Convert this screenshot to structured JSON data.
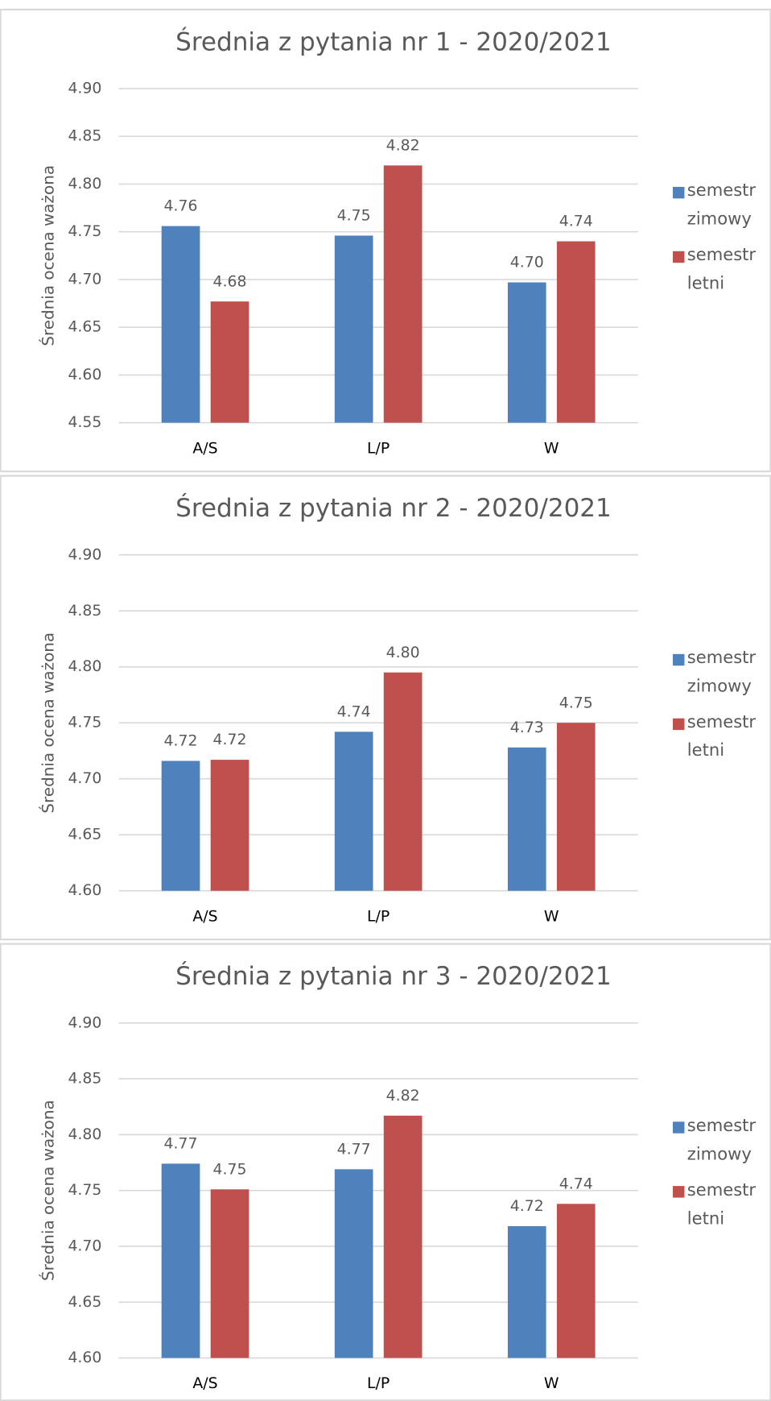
{
  "chart_data": [
    {
      "type": "bar",
      "title": "Średnia z pytania nr 1 - 2020/2021",
      "y_label": "Średnia ocena ważona",
      "categories": [
        "A/S",
        "L/P",
        "W"
      ],
      "series": [
        {
          "name": "semestr zimowy",
          "color": "#4f81bd",
          "values": [
            4.756,
            4.746,
            4.697
          ],
          "value_labels": [
            "4.76",
            "4.75",
            "4.70"
          ]
        },
        {
          "name": "semestr letni",
          "color": "#c0504d",
          "values": [
            4.677,
            4.8195,
            4.74
          ],
          "value_labels": [
            "4.68",
            "4.82",
            "4.74"
          ]
        }
      ],
      "ylim": [
        4.55,
        4.9
      ],
      "yticks": [
        {
          "value": 4.55,
          "label": "4.55"
        },
        {
          "value": 4.6,
          "label": "4.60"
        },
        {
          "value": 4.65,
          "label": "4.65"
        },
        {
          "value": 4.7,
          "label": "4.70"
        },
        {
          "value": 4.75,
          "label": "4.75"
        },
        {
          "value": 4.8,
          "label": "4.80"
        },
        {
          "value": 4.85,
          "label": "4.85"
        },
        {
          "value": 4.9,
          "label": "4.90"
        }
      ],
      "grid": true,
      "legend": "right"
    },
    {
      "type": "bar",
      "title": "Średnia z pytania nr 2 - 2020/2021",
      "y_label": "Średnia ocena ważona",
      "categories": [
        "A/S",
        "L/P",
        "W"
      ],
      "series": [
        {
          "name": "semestr zimowy",
          "color": "#4f81bd",
          "values": [
            4.716,
            4.742,
            4.728
          ],
          "value_labels": [
            "4.72",
            "4.74",
            "4.73"
          ]
        },
        {
          "name": "semestr letni",
          "color": "#c0504d",
          "values": [
            4.717,
            4.795,
            4.75
          ],
          "value_labels": [
            "4.72",
            "4.80",
            "4.75"
          ]
        }
      ],
      "ylim": [
        4.6,
        4.9
      ],
      "yticks": [
        {
          "value": 4.6,
          "label": "4.60"
        },
        {
          "value": 4.65,
          "label": "4.65"
        },
        {
          "value": 4.7,
          "label": "4.70"
        },
        {
          "value": 4.75,
          "label": "4.75"
        },
        {
          "value": 4.8,
          "label": "4.80"
        },
        {
          "value": 4.85,
          "label": "4.85"
        },
        {
          "value": 4.9,
          "label": "4.90"
        }
      ],
      "grid": true,
      "legend": "right"
    },
    {
      "type": "bar",
      "title": "Średnia z pytania nr 3 - 2020/2021",
      "y_label": "Średnia ocena ważona",
      "categories": [
        "A/S",
        "L/P",
        "W"
      ],
      "series": [
        {
          "name": "semestr zimowy",
          "color": "#4f81bd",
          "values": [
            4.774,
            4.769,
            4.718
          ],
          "value_labels": [
            "4.77",
            "4.77",
            "4.72"
          ]
        },
        {
          "name": "semestr letni",
          "color": "#c0504d",
          "values": [
            4.751,
            4.817,
            4.738
          ],
          "value_labels": [
            "4.75",
            "4.82",
            "4.74"
          ]
        }
      ],
      "ylim": [
        4.6,
        4.9
      ],
      "yticks": [
        {
          "value": 4.6,
          "label": "4.60"
        },
        {
          "value": 4.65,
          "label": "4.65"
        },
        {
          "value": 4.7,
          "label": "4.70"
        },
        {
          "value": 4.75,
          "label": "4.75"
        },
        {
          "value": 4.8,
          "label": "4.80"
        },
        {
          "value": 4.85,
          "label": "4.85"
        },
        {
          "value": 4.9,
          "label": "4.90"
        }
      ],
      "grid": true,
      "legend": "right"
    }
  ]
}
